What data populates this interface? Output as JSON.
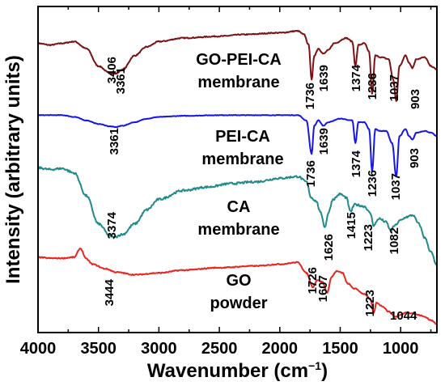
{
  "chart_data": {
    "type": "line",
    "xlabel": "Wavenumber (cm⁻¹)",
    "ylabel": "Intensity (arbitrary units)",
    "xlim": [
      4000,
      700
    ],
    "x_reversed": true,
    "xticks": [
      4000,
      3500,
      3000,
      2500,
      2000,
      1500,
      1000
    ],
    "yticks_shown": false,
    "grid": false,
    "legend": "none",
    "series": [
      {
        "label_lines": [
          "GO-PEI-CA",
          "membrane"
        ],
        "color": "#7b1113",
        "peaks": [
          "3406",
          "3361",
          "1736",
          "1639",
          "1374",
          "1236",
          "1037",
          "903"
        ],
        "points": [
          [
            4000,
            8.25
          ],
          [
            3900,
            8.2
          ],
          [
            3800,
            8.25
          ],
          [
            3700,
            8.3
          ],
          [
            3600,
            8.1
          ],
          [
            3500,
            7.6
          ],
          [
            3406,
            7.4
          ],
          [
            3361,
            7.38
          ],
          [
            3300,
            7.5
          ],
          [
            3200,
            7.9
          ],
          [
            3100,
            8.15
          ],
          [
            3000,
            8.3
          ],
          [
            2800,
            8.4
          ],
          [
            2500,
            8.45
          ],
          [
            2300,
            8.5
          ],
          [
            2000,
            8.55
          ],
          [
            1850,
            8.6
          ],
          [
            1800,
            8.5
          ],
          [
            1760,
            8.2
          ],
          [
            1736,
            7.2
          ],
          [
            1715,
            7.9
          ],
          [
            1680,
            8.1
          ],
          [
            1639,
            7.95
          ],
          [
            1600,
            8.05
          ],
          [
            1550,
            8.25
          ],
          [
            1450,
            8.4
          ],
          [
            1400,
            8.3
          ],
          [
            1374,
            7.6
          ],
          [
            1350,
            8.2
          ],
          [
            1300,
            8.25
          ],
          [
            1260,
            8.0
          ],
          [
            1236,
            6.8
          ],
          [
            1210,
            7.9
          ],
          [
            1160,
            7.85
          ],
          [
            1100,
            7.8
          ],
          [
            1060,
            7.2
          ],
          [
            1037,
            6.6
          ],
          [
            1010,
            7.6
          ],
          [
            960,
            7.9
          ],
          [
            930,
            7.7
          ],
          [
            903,
            7.55
          ],
          [
            870,
            7.8
          ],
          [
            800,
            7.85
          ],
          [
            750,
            7.6
          ],
          [
            700,
            7.5
          ]
        ]
      },
      {
        "label_lines": [
          "PEI-CA",
          "membrane"
        ],
        "color": "#1515e8",
        "peaks": [
          "3361",
          "1736",
          "1639",
          "1374",
          "1236",
          "1037",
          "903"
        ],
        "points": [
          [
            4000,
            6.2
          ],
          [
            3800,
            6.2
          ],
          [
            3700,
            6.15
          ],
          [
            3600,
            6.05
          ],
          [
            3500,
            5.95
          ],
          [
            3400,
            5.88
          ],
          [
            3361,
            5.86
          ],
          [
            3300,
            5.9
          ],
          [
            3200,
            6.0
          ],
          [
            3100,
            6.1
          ],
          [
            3000,
            6.15
          ],
          [
            2800,
            6.18
          ],
          [
            2500,
            6.2
          ],
          [
            2000,
            6.2
          ],
          [
            1850,
            6.2
          ],
          [
            1780,
            6.05
          ],
          [
            1736,
            5.1
          ],
          [
            1715,
            5.9
          ],
          [
            1680,
            6.05
          ],
          [
            1639,
            5.9
          ],
          [
            1600,
            6.0
          ],
          [
            1500,
            6.1
          ],
          [
            1400,
            6.05
          ],
          [
            1374,
            5.4
          ],
          [
            1350,
            6.0
          ],
          [
            1300,
            6.0
          ],
          [
            1260,
            5.8
          ],
          [
            1236,
            4.6
          ],
          [
            1210,
            5.8
          ],
          [
            1170,
            5.75
          ],
          [
            1120,
            5.75
          ],
          [
            1070,
            5.4
          ],
          [
            1037,
            4.45
          ],
          [
            1010,
            5.6
          ],
          [
            960,
            5.8
          ],
          [
            930,
            5.6
          ],
          [
            903,
            5.5
          ],
          [
            870,
            5.7
          ],
          [
            800,
            5.75
          ],
          [
            750,
            5.7
          ],
          [
            700,
            5.6
          ]
        ]
      },
      {
        "label_lines": [
          "CA",
          "membrane"
        ],
        "color": "#1f8a8a",
        "peaks": [
          "3374",
          "1626",
          "1415",
          "1223",
          "1082"
        ],
        "points": [
          [
            4000,
            4.7
          ],
          [
            3900,
            4.65
          ],
          [
            3800,
            4.68
          ],
          [
            3700,
            4.55
          ],
          [
            3600,
            3.9
          ],
          [
            3500,
            3.1
          ],
          [
            3400,
            2.75
          ],
          [
            3374,
            2.72
          ],
          [
            3300,
            2.8
          ],
          [
            3200,
            3.1
          ],
          [
            3100,
            3.5
          ],
          [
            3000,
            3.8
          ],
          [
            2800,
            4.05
          ],
          [
            2600,
            4.15
          ],
          [
            2400,
            4.25
          ],
          [
            2200,
            4.3
          ],
          [
            2000,
            4.4
          ],
          [
            1850,
            4.45
          ],
          [
            1780,
            4.3
          ],
          [
            1740,
            3.85
          ],
          [
            1700,
            3.75
          ],
          [
            1660,
            3.4
          ],
          [
            1626,
            3.0
          ],
          [
            1600,
            3.4
          ],
          [
            1560,
            3.8
          ],
          [
            1500,
            3.95
          ],
          [
            1450,
            3.85
          ],
          [
            1415,
            3.45
          ],
          [
            1380,
            3.65
          ],
          [
            1300,
            3.6
          ],
          [
            1250,
            3.4
          ],
          [
            1223,
            3.05
          ],
          [
            1180,
            3.25
          ],
          [
            1120,
            3.15
          ],
          [
            1082,
            2.9
          ],
          [
            1050,
            3.05
          ],
          [
            1000,
            3.2
          ],
          [
            950,
            3.3
          ],
          [
            900,
            3.35
          ],
          [
            850,
            3.1
          ],
          [
            800,
            2.7
          ],
          [
            750,
            2.3
          ],
          [
            700,
            1.9
          ]
        ]
      },
      {
        "label_lines": [
          "GO",
          "powder"
        ],
        "color": "#e8251e",
        "peaks": [
          "3444",
          "1726",
          "1607",
          "1223",
          "1044"
        ],
        "points": [
          [
            4000,
            2.15
          ],
          [
            3900,
            2.12
          ],
          [
            3800,
            2.12
          ],
          [
            3700,
            2.15
          ],
          [
            3650,
            2.4
          ],
          [
            3600,
            2.1
          ],
          [
            3550,
            1.95
          ],
          [
            3444,
            1.82
          ],
          [
            3350,
            1.72
          ],
          [
            3200,
            1.65
          ],
          [
            3000,
            1.7
          ],
          [
            2800,
            1.78
          ],
          [
            2500,
            1.85
          ],
          [
            2200,
            1.9
          ],
          [
            2000,
            1.95
          ],
          [
            1850,
            2.0
          ],
          [
            1780,
            1.7
          ],
          [
            1726,
            1.3
          ],
          [
            1690,
            1.5
          ],
          [
            1650,
            1.45
          ],
          [
            1607,
            1.15
          ],
          [
            1570,
            1.6
          ],
          [
            1530,
            1.75
          ],
          [
            1480,
            1.7
          ],
          [
            1440,
            1.4
          ],
          [
            1380,
            1.25
          ],
          [
            1300,
            1.1
          ],
          [
            1250,
            0.95
          ],
          [
            1223,
            0.55
          ],
          [
            1200,
            0.85
          ],
          [
            1150,
            0.75
          ],
          [
            1100,
            0.6
          ],
          [
            1044,
            0.45
          ],
          [
            1000,
            0.5
          ],
          [
            950,
            0.58
          ],
          [
            900,
            0.55
          ],
          [
            850,
            0.5
          ],
          [
            800,
            0.45
          ],
          [
            750,
            0.35
          ],
          [
            700,
            0.25
          ]
        ]
      }
    ]
  }
}
